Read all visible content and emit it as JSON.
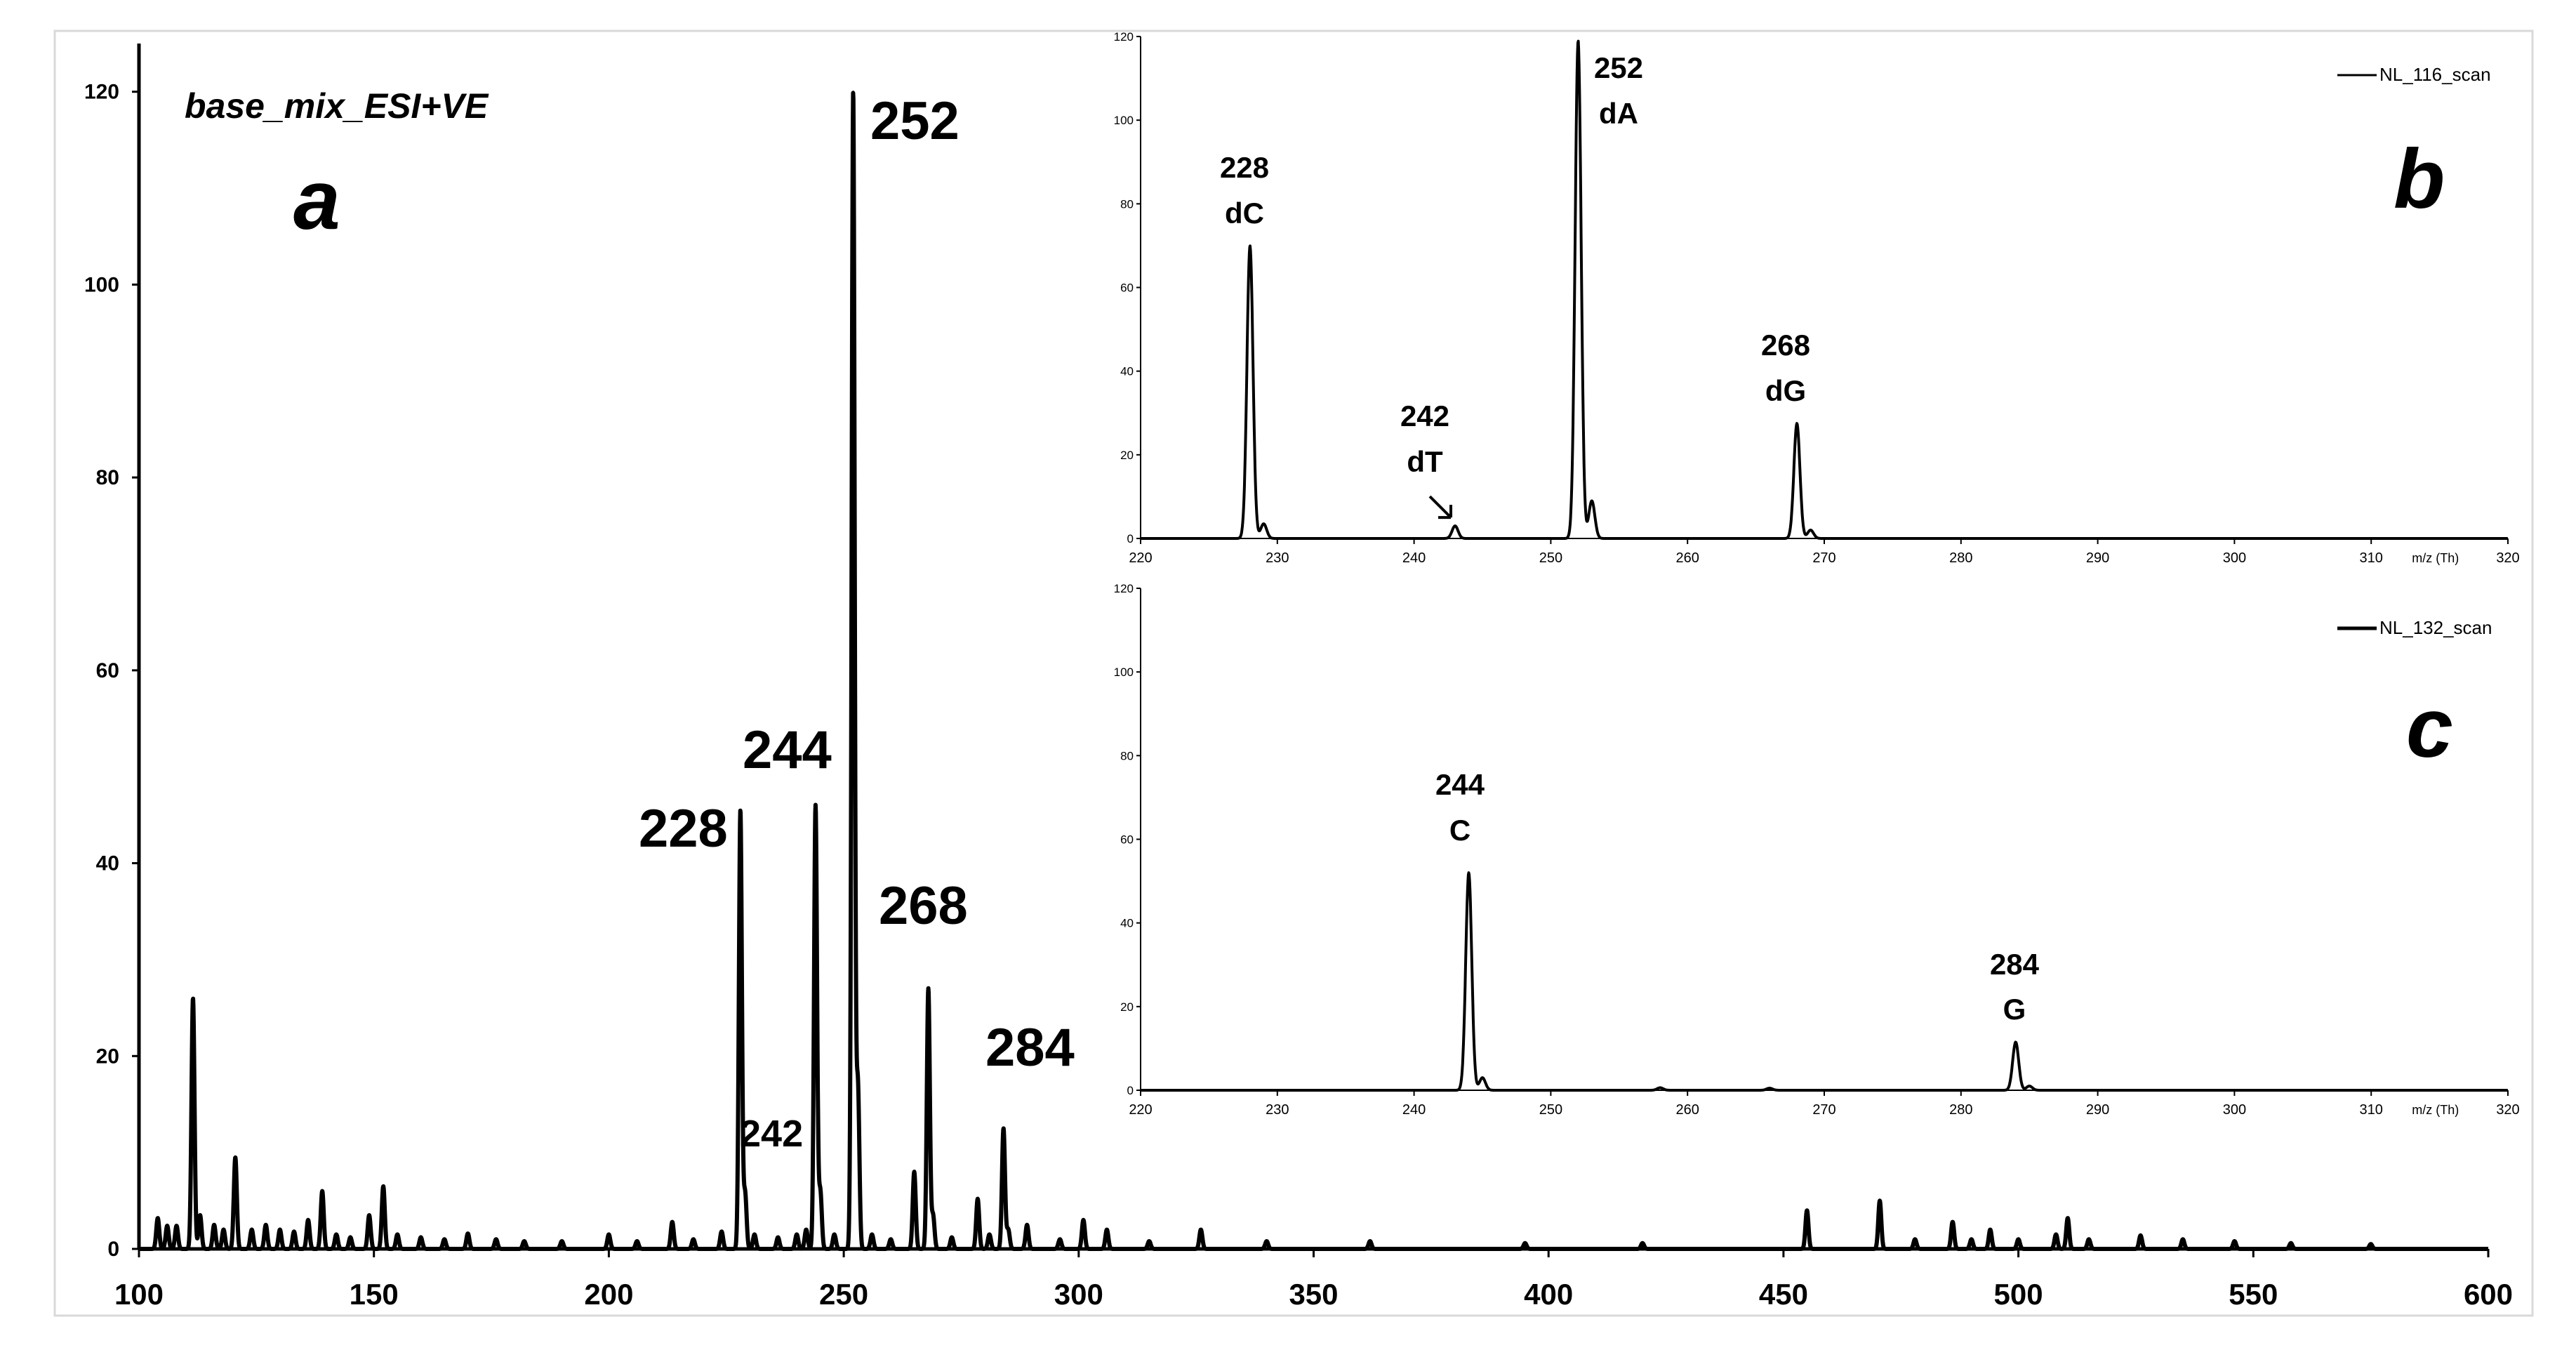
{
  "chart_data": [
    {
      "panel": "a",
      "type": "line",
      "title": "base_mix_ESI+VE",
      "panel_label": "a",
      "xlabel": "",
      "ylabel": "",
      "xlim": [
        100,
        600
      ],
      "ylim": [
        0,
        125
      ],
      "xticks": [
        100,
        150,
        200,
        250,
        300,
        350,
        400,
        450,
        500,
        550,
        600
      ],
      "yticks": [
        0,
        20,
        40,
        60,
        80,
        100,
        120
      ],
      "grid": false,
      "line_color": "#000000",
      "peaks": [
        {
          "x": 104,
          "y": 3.2
        },
        {
          "x": 106,
          "y": 2.4
        },
        {
          "x": 108,
          "y": 2.4
        },
        {
          "x": 111.5,
          "y": 26
        },
        {
          "x": 113,
          "y": 3.5
        },
        {
          "x": 116,
          "y": 2.5
        },
        {
          "x": 118,
          "y": 2.0
        },
        {
          "x": 120.5,
          "y": 9.5
        },
        {
          "x": 124,
          "y": 2.0
        },
        {
          "x": 127,
          "y": 2.5
        },
        {
          "x": 130,
          "y": 2.0
        },
        {
          "x": 133,
          "y": 1.8
        },
        {
          "x": 136,
          "y": 3.0
        },
        {
          "x": 139,
          "y": 6.0
        },
        {
          "x": 142,
          "y": 1.5
        },
        {
          "x": 145,
          "y": 1.2
        },
        {
          "x": 149,
          "y": 3.5
        },
        {
          "x": 152,
          "y": 6.5
        },
        {
          "x": 155,
          "y": 1.5
        },
        {
          "x": 160,
          "y": 1.2
        },
        {
          "x": 165,
          "y": 1.0
        },
        {
          "x": 170,
          "y": 1.6
        },
        {
          "x": 176,
          "y": 1.0
        },
        {
          "x": 182,
          "y": 0.8
        },
        {
          "x": 190,
          "y": 0.8
        },
        {
          "x": 200,
          "y": 1.5
        },
        {
          "x": 206,
          "y": 0.8
        },
        {
          "x": 213.5,
          "y": 2.8
        },
        {
          "x": 218,
          "y": 1.0
        },
        {
          "x": 224,
          "y": 1.8
        },
        {
          "x": 228,
          "y": 45.5
        },
        {
          "x": 229,
          "y": 5.8
        },
        {
          "x": 231,
          "y": 1.5
        },
        {
          "x": 236,
          "y": 1.2
        },
        {
          "x": 240,
          "y": 1.5
        },
        {
          "x": 242,
          "y": 2.0
        },
        {
          "x": 244,
          "y": 46
        },
        {
          "x": 245,
          "y": 6.0
        },
        {
          "x": 248,
          "y": 1.5
        },
        {
          "x": 252,
          "y": 120
        },
        {
          "x": 253,
          "y": 17
        },
        {
          "x": 256,
          "y": 1.5
        },
        {
          "x": 260,
          "y": 1.0
        },
        {
          "x": 265,
          "y": 8.0
        },
        {
          "x": 268,
          "y": 27
        },
        {
          "x": 269,
          "y": 3.5
        },
        {
          "x": 273,
          "y": 1.2
        },
        {
          "x": 278.5,
          "y": 5.2
        },
        {
          "x": 281,
          "y": 1.5
        },
        {
          "x": 284,
          "y": 12.5
        },
        {
          "x": 285,
          "y": 2.0
        },
        {
          "x": 289,
          "y": 2.5
        },
        {
          "x": 296,
          "y": 1.0
        },
        {
          "x": 301,
          "y": 3.0
        },
        {
          "x": 306,
          "y": 2.0
        },
        {
          "x": 315,
          "y": 0.8
        },
        {
          "x": 326,
          "y": 2.0
        },
        {
          "x": 340,
          "y": 0.8
        },
        {
          "x": 362,
          "y": 0.8
        },
        {
          "x": 395,
          "y": 0.6
        },
        {
          "x": 420,
          "y": 0.6
        },
        {
          "x": 455,
          "y": 4.0
        },
        {
          "x": 470.5,
          "y": 5.0
        },
        {
          "x": 478,
          "y": 1.0
        },
        {
          "x": 486,
          "y": 2.8
        },
        {
          "x": 490,
          "y": 1.0
        },
        {
          "x": 494,
          "y": 2.0
        },
        {
          "x": 500,
          "y": 1.0
        },
        {
          "x": 508,
          "y": 1.5
        },
        {
          "x": 510.5,
          "y": 3.2
        },
        {
          "x": 515,
          "y": 1.0
        },
        {
          "x": 526,
          "y": 1.4
        },
        {
          "x": 535,
          "y": 1.0
        },
        {
          "x": 546,
          "y": 0.8
        },
        {
          "x": 558,
          "y": 0.6
        },
        {
          "x": 575,
          "y": 0.5
        }
      ],
      "annotations": [
        {
          "text": "228",
          "x": 228,
          "y": 45.5
        },
        {
          "text": "244",
          "x": 244,
          "y": 46
        },
        {
          "text": "252",
          "x": 252,
          "y": 120
        },
        {
          "text": "268",
          "x": 268,
          "y": 27
        },
        {
          "text": "284",
          "x": 284,
          "y": 12.5
        },
        {
          "text": "242",
          "x": 242,
          "y": 2.0
        }
      ]
    },
    {
      "panel": "b",
      "type": "line",
      "panel_label": "b",
      "legend": "NL_116_scan",
      "legend_position": "top-right",
      "xlim": [
        220,
        320
      ],
      "ylim": [
        0,
        120
      ],
      "xticks": [
        "220",
        "230",
        "240",
        "250",
        "260",
        "270",
        "280",
        "290",
        "300",
        "310",
        "320"
      ],
      "xunit": "m/z (Th)",
      "yticks": [
        0,
        20,
        40,
        60,
        80,
        100,
        120
      ],
      "grid": false,
      "peaks": [
        {
          "x": 228,
          "y": 70
        },
        {
          "x": 229,
          "y": 3.5
        },
        {
          "x": 243,
          "y": 3.0
        },
        {
          "x": 252,
          "y": 119
        },
        {
          "x": 253,
          "y": 9.0
        },
        {
          "x": 268,
          "y": 27.5
        },
        {
          "x": 269,
          "y": 2.0
        }
      ],
      "annotations": [
        {
          "mz": "228",
          "name": "dC",
          "x": 228,
          "y": 70
        },
        {
          "mz": "242",
          "name": "dT",
          "x": 243,
          "y": 3.0,
          "arrow": true
        },
        {
          "mz": "252",
          "name": "dA",
          "x": 252,
          "y": 119
        },
        {
          "mz": "268",
          "name": "dG",
          "x": 268,
          "y": 27.5
        }
      ]
    },
    {
      "panel": "c",
      "type": "line",
      "panel_label": "c",
      "legend": "NL_132_scan",
      "legend_position": "top-right",
      "xlim": [
        220,
        320
      ],
      "ylim": [
        0,
        120
      ],
      "xticks": [
        "220",
        "230",
        "240",
        "250",
        "260",
        "270",
        "280",
        "290",
        "300",
        "310",
        "320"
      ],
      "xunit": "m/z (Th)",
      "yticks": [
        0,
        20,
        40,
        60,
        80,
        100,
        120
      ],
      "grid": false,
      "peaks": [
        {
          "x": 244,
          "y": 52
        },
        {
          "x": 245,
          "y": 3.0
        },
        {
          "x": 258,
          "y": 0.6
        },
        {
          "x": 266,
          "y": 0.5
        },
        {
          "x": 284,
          "y": 11.5
        },
        {
          "x": 285,
          "y": 1.0
        }
      ],
      "annotations": [
        {
          "mz": "244",
          "name": "C",
          "x": 244,
          "y": 52
        },
        {
          "mz": "284",
          "name": "G",
          "x": 284,
          "y": 11.5
        }
      ]
    }
  ]
}
